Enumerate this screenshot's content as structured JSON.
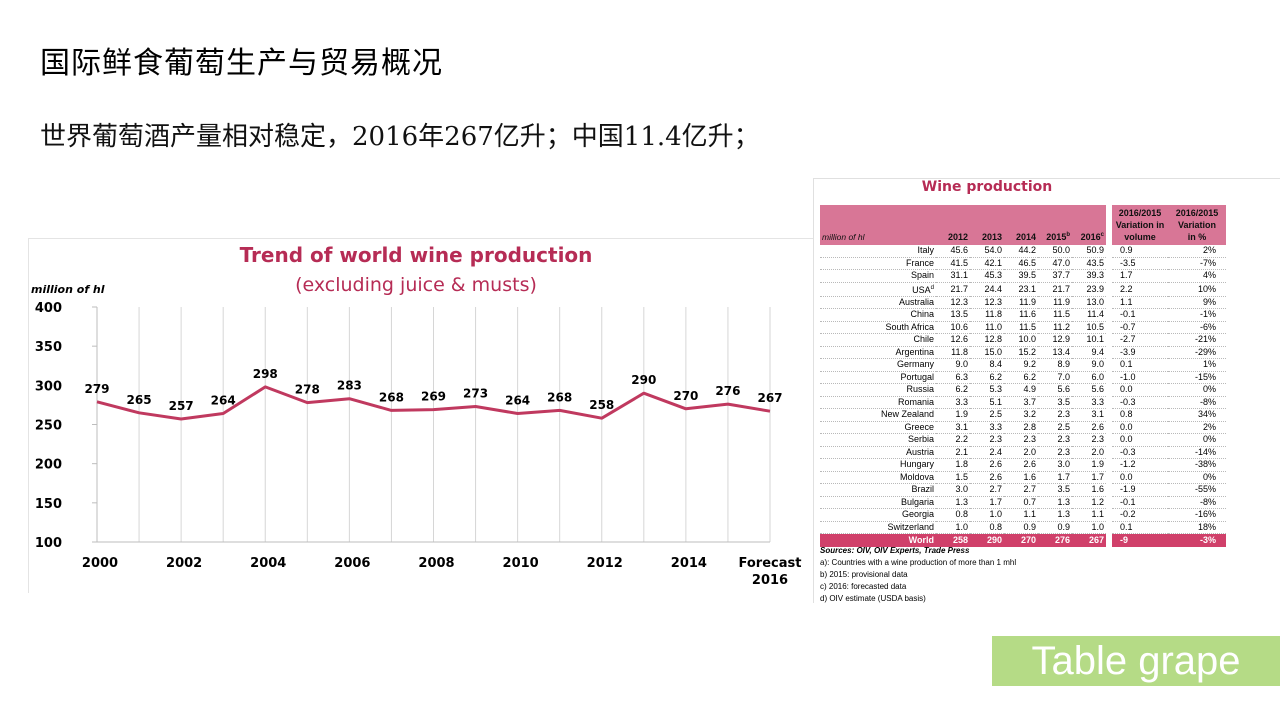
{
  "slide": {
    "title": "国际鲜食葡萄生产与贸易概况",
    "subtitle": "世界葡萄酒产量相对稳定，2016年267亿升；中国11.4亿升；"
  },
  "chart_data": {
    "type": "line",
    "title": "Trend of world wine production",
    "subtitle": "(excluding juice & musts)",
    "ylabel": "million of hl",
    "xlabel": "",
    "ylim": [
      100,
      400
    ],
    "yticks": [
      100,
      150,
      200,
      250,
      300,
      350,
      400
    ],
    "grid": true,
    "color": "#c0395f",
    "x": [
      "2000",
      "2001",
      "2002",
      "2003",
      "2004",
      "2005",
      "2006",
      "2007",
      "2008",
      "2009",
      "2010",
      "2011",
      "2012",
      "2013",
      "2014",
      "2015",
      "2016"
    ],
    "xtick_labels": [
      "2000",
      "",
      "2002",
      "",
      "2004",
      "",
      "2006",
      "",
      "2008",
      "",
      "2010",
      "",
      "2012",
      "",
      "2014",
      "",
      "Forecast 2016"
    ],
    "values": [
      279,
      265,
      257,
      264,
      298,
      278,
      283,
      268,
      269,
      273,
      264,
      268,
      258,
      290,
      270,
      276,
      267
    ]
  },
  "table": {
    "title": "Wine production",
    "unit_label": "million of hl",
    "years": [
      "2012",
      "2013",
      "2014",
      "2015",
      "2016"
    ],
    "year_sups": [
      "",
      "",
      "",
      "b",
      "c"
    ],
    "var_volume_header": [
      "2016/2015",
      "Variation in",
      "volume"
    ],
    "var_pct_header": [
      "2016/2015",
      "Variation",
      "in %"
    ],
    "rows": [
      {
        "country": "Italy",
        "sup": "",
        "v": [
          "45.6",
          "54.0",
          "44.2",
          "50.0",
          "50.9"
        ],
        "vol": "0.9",
        "pct": "2%"
      },
      {
        "country": "France",
        "sup": "",
        "v": [
          "41.5",
          "42.1",
          "46.5",
          "47.0",
          "43.5"
        ],
        "vol": "-3.5",
        "pct": "-7%"
      },
      {
        "country": "Spain",
        "sup": "",
        "v": [
          "31.1",
          "45.3",
          "39.5",
          "37.7",
          "39.3"
        ],
        "vol": "1.7",
        "pct": "4%"
      },
      {
        "country": "USA",
        "sup": "d",
        "v": [
          "21.7",
          "24.4",
          "23.1",
          "21.7",
          "23.9"
        ],
        "vol": "2.2",
        "pct": "10%"
      },
      {
        "country": "Australia",
        "sup": "",
        "v": [
          "12.3",
          "12.3",
          "11.9",
          "11.9",
          "13.0"
        ],
        "vol": "1.1",
        "pct": "9%"
      },
      {
        "country": "China",
        "sup": "",
        "v": [
          "13.5",
          "11.8",
          "11.6",
          "11.5",
          "11.4"
        ],
        "vol": "-0.1",
        "pct": "-1%"
      },
      {
        "country": "South Africa",
        "sup": "",
        "v": [
          "10.6",
          "11.0",
          "11.5",
          "11.2",
          "10.5"
        ],
        "vol": "-0.7",
        "pct": "-6%"
      },
      {
        "country": "Chile",
        "sup": "",
        "v": [
          "12.6",
          "12.8",
          "10.0",
          "12.9",
          "10.1"
        ],
        "vol": "-2.7",
        "pct": "-21%"
      },
      {
        "country": "Argentina",
        "sup": "",
        "v": [
          "11.8",
          "15.0",
          "15.2",
          "13.4",
          "9.4"
        ],
        "vol": "-3.9",
        "pct": "-29%"
      },
      {
        "country": "Germany",
        "sup": "",
        "v": [
          "9.0",
          "8.4",
          "9.2",
          "8.9",
          "9.0"
        ],
        "vol": "0.1",
        "pct": "1%"
      },
      {
        "country": "Portugal",
        "sup": "",
        "v": [
          "6.3",
          "6.2",
          "6.2",
          "7.0",
          "6.0"
        ],
        "vol": "-1.0",
        "pct": "-15%"
      },
      {
        "country": "Russia",
        "sup": "",
        "v": [
          "6.2",
          "5.3",
          "4.9",
          "5.6",
          "5.6"
        ],
        "vol": "0.0",
        "pct": "0%"
      },
      {
        "country": "Romania",
        "sup": "",
        "v": [
          "3.3",
          "5.1",
          "3.7",
          "3.5",
          "3.3"
        ],
        "vol": "-0.3",
        "pct": "-8%"
      },
      {
        "country": "New Zealand",
        "sup": "",
        "v": [
          "1.9",
          "2.5",
          "3.2",
          "2.3",
          "3.1"
        ],
        "vol": "0.8",
        "pct": "34%"
      },
      {
        "country": "Greece",
        "sup": "",
        "v": [
          "3.1",
          "3.3",
          "2.8",
          "2.5",
          "2.6"
        ],
        "vol": "0.0",
        "pct": "2%"
      },
      {
        "country": "Serbia",
        "sup": "",
        "v": [
          "2.2",
          "2.3",
          "2.3",
          "2.3",
          "2.3"
        ],
        "vol": "0.0",
        "pct": "0%"
      },
      {
        "country": "Austria",
        "sup": "",
        "v": [
          "2.1",
          "2.4",
          "2.0",
          "2.3",
          "2.0"
        ],
        "vol": "-0.3",
        "pct": "-14%"
      },
      {
        "country": "Hungary",
        "sup": "",
        "v": [
          "1.8",
          "2.6",
          "2.6",
          "3.0",
          "1.9"
        ],
        "vol": "-1.2",
        "pct": "-38%"
      },
      {
        "country": "Moldova",
        "sup": "",
        "v": [
          "1.5",
          "2.6",
          "1.6",
          "1.7",
          "1.7"
        ],
        "vol": "0.0",
        "pct": "0%"
      },
      {
        "country": "Brazil",
        "sup": "",
        "v": [
          "3.0",
          "2.7",
          "2.7",
          "3.5",
          "1.6"
        ],
        "vol": "-1.9",
        "pct": "-55%"
      },
      {
        "country": "Bulgaria",
        "sup": "",
        "v": [
          "1.3",
          "1.7",
          "0.7",
          "1.3",
          "1.2"
        ],
        "vol": "-0.1",
        "pct": "-8%"
      },
      {
        "country": "Georgia",
        "sup": "",
        "v": [
          "0.8",
          "1.0",
          "1.1",
          "1.3",
          "1.1"
        ],
        "vol": "-0.2",
        "pct": "-16%"
      },
      {
        "country": "Switzerland",
        "sup": "",
        "v": [
          "1.0",
          "0.8",
          "0.9",
          "0.9",
          "1.0"
        ],
        "vol": "0.1",
        "pct": "18%"
      }
    ],
    "world": {
      "country": "World",
      "v": [
        "258",
        "290",
        "270",
        "276",
        "267"
      ],
      "vol": "-9",
      "pct": "-3%"
    },
    "notes": {
      "source": "Sources: OIV, OIV Experts, Trade Press",
      "a": "a): Countries  with a wine production of more than 1 mhl",
      "b": "b)  2015: provisional data",
      "c": "c)  2016: forecasted data",
      "d": "d) OIV estimate (USDA basis)"
    }
  },
  "button": {
    "label": "Table grape",
    "color": "#b5db86"
  }
}
